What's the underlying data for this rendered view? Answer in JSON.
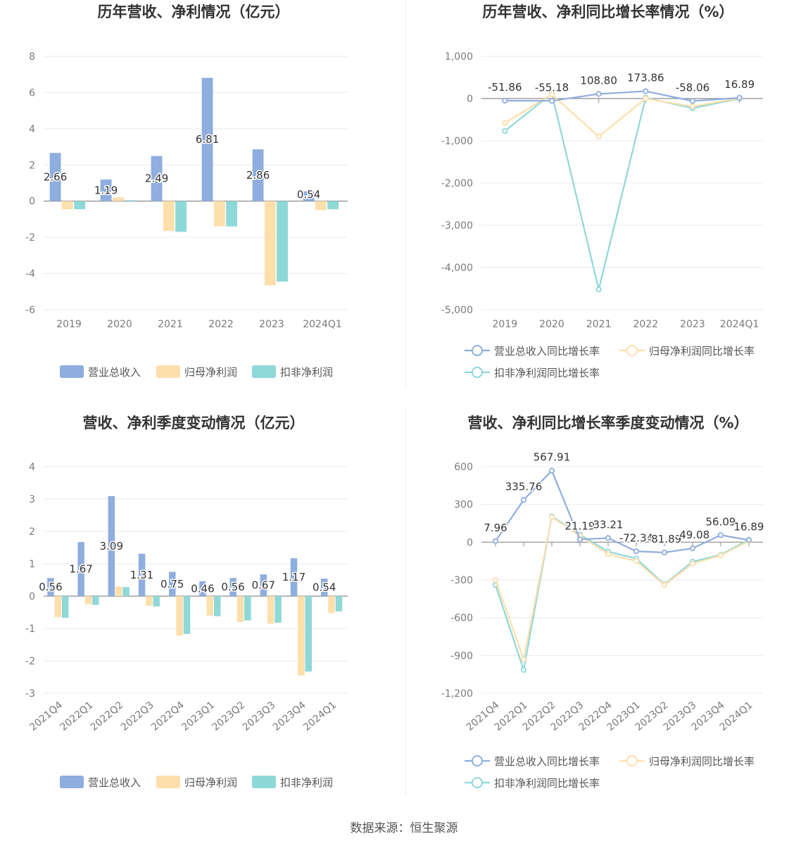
{
  "colors": {
    "revenue": "#8fadde",
    "net": "#fddfac",
    "deducted": "#8ed8d8",
    "axis": "#8c8c8c",
    "grid": "#e6eaf0"
  },
  "legend_bar": [
    "营业总收入",
    "归母净利润",
    "扣非净利润"
  ],
  "legend_line": [
    "营业总收入同比增长率",
    "归母净利润同比增长率",
    "扣非净利润同比增长率"
  ],
  "source": "数据来源：恒生聚源",
  "chart_data": [
    {
      "type": "bar",
      "title": "历年营收、净利情况（亿元）",
      "categories": [
        "2019",
        "2020",
        "2021",
        "2022",
        "2023",
        "2024Q1"
      ],
      "ylim": [
        -6,
        8
      ],
      "yticks": [
        8,
        6,
        4,
        2,
        0,
        -2,
        -4,
        -6
      ],
      "series": [
        {
          "name": "营业总收入",
          "values": [
            2.66,
            1.19,
            2.49,
            6.81,
            2.86,
            0.54
          ],
          "labels": [
            "2.66",
            "1.19",
            "2.49",
            "6.81",
            "2.86",
            "0.54"
          ]
        },
        {
          "name": "归母净利润",
          "values": [
            -0.45,
            0.2,
            -1.65,
            -1.4,
            -4.65,
            -0.5
          ]
        },
        {
          "name": "扣非净利润",
          "values": [
            -0.45,
            0.05,
            -1.7,
            -1.4,
            -4.45,
            -0.45
          ]
        }
      ]
    },
    {
      "type": "line",
      "title": "历年营收、净利同比增长率情况（%）",
      "categories": [
        "2019",
        "2020",
        "2021",
        "2022",
        "2023",
        "2024Q1"
      ],
      "ylim": [
        -5000,
        1000
      ],
      "yticks": [
        "1,000",
        "0",
        "-1,000",
        "-2,000",
        "-3,000",
        "-4,000",
        "-5,000"
      ],
      "series": [
        {
          "name": "营业总收入同比增长率",
          "values": [
            -51.86,
            -55.18,
            108.8,
            173.86,
            -58.06,
            16.89
          ],
          "labels": [
            "-51.86",
            "-55.18",
            "108.80",
            "173.86",
            "-58.06",
            "16.89"
          ]
        },
        {
          "name": "归母净利润同比增长率",
          "values": [
            -580,
            100,
            -900,
            0,
            -190,
            10
          ]
        },
        {
          "name": "扣非净利润同比增长率",
          "values": [
            -770,
            120,
            -4520,
            20,
            -230,
            0
          ]
        }
      ]
    },
    {
      "type": "bar",
      "title": "营收、净利季度变动情况（亿元）",
      "categories": [
        "2021Q4",
        "2022Q1",
        "2022Q2",
        "2022Q3",
        "2022Q4",
        "2023Q1",
        "2023Q2",
        "2023Q3",
        "2023Q4",
        "2024Q1"
      ],
      "ylim": [
        -3,
        4
      ],
      "yticks": [
        4,
        3,
        2,
        1,
        0,
        -1,
        -2,
        -3
      ],
      "series": [
        {
          "name": "营业总收入",
          "values": [
            0.56,
            1.67,
            3.09,
            1.31,
            0.75,
            0.46,
            0.56,
            0.67,
            1.17,
            0.54
          ],
          "labels": [
            "0.56",
            "1.67",
            "3.09",
            "1.31",
            "0.75",
            "0.46",
            "0.56",
            "0.67",
            "1.17",
            "0.54"
          ]
        },
        {
          "name": "归母净利润",
          "values": [
            -0.65,
            -0.25,
            0.3,
            -0.3,
            -1.22,
            -0.6,
            -0.8,
            -0.85,
            -2.45,
            -0.52
          ]
        },
        {
          "name": "扣非净利润",
          "values": [
            -0.67,
            -0.27,
            0.28,
            -0.32,
            -1.17,
            -0.62,
            -0.75,
            -0.82,
            -2.33,
            -0.47
          ]
        }
      ]
    },
    {
      "type": "line",
      "title": "营收、净利同比增长率季度变动情况（%）",
      "categories": [
        "2021Q4",
        "2022Q1",
        "2022Q2",
        "2022Q3",
        "2022Q4",
        "2023Q1",
        "2023Q2",
        "2023Q3",
        "2023Q4",
        "2024Q1"
      ],
      "ylim": [
        -1200,
        600
      ],
      "yticks": [
        "600",
        "300",
        "0",
        "-300",
        "-600",
        "-900",
        "-1,200"
      ],
      "series": [
        {
          "name": "营业总收入同比增长率",
          "values": [
            7.96,
            335.76,
            567.91,
            21.19,
            33.21,
            -72.34,
            -81.89,
            -49.08,
            56.09,
            16.89
          ],
          "labels": [
            "7.96",
            "335.76",
            "567.91",
            "21.19",
            "33.21",
            "-72.34",
            "-81.89",
            "-49.08",
            "56.09",
            "16.89"
          ]
        },
        {
          "name": "归母净利润同比增长率",
          "values": [
            -300,
            -930,
            200,
            50,
            -95,
            -150,
            -340,
            -170,
            -105,
            10
          ]
        },
        {
          "name": "扣非净利润同比增长率",
          "values": [
            -340,
            -1015,
            205,
            60,
            -75,
            -130,
            -335,
            -155,
            -100,
            20
          ]
        }
      ]
    }
  ]
}
